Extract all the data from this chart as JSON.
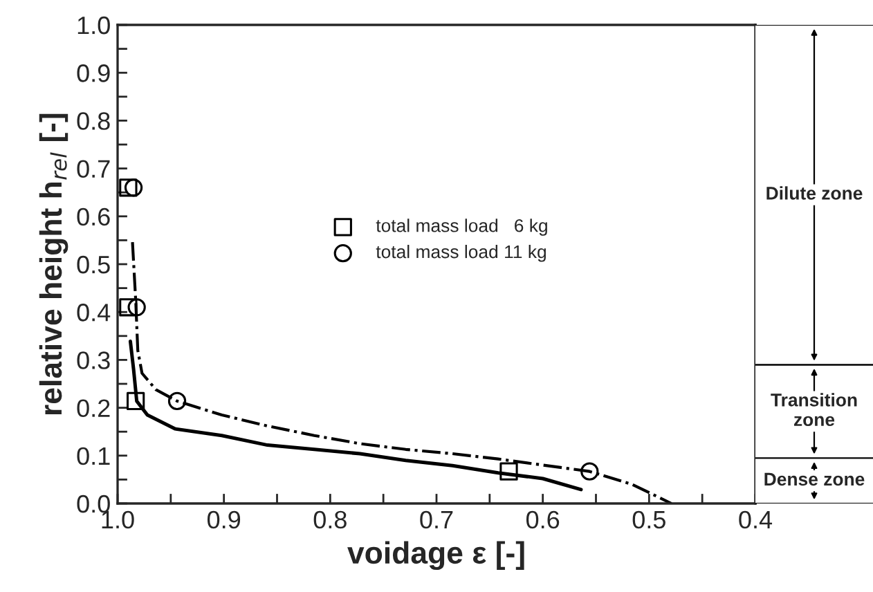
{
  "chart_data": [
    {
      "type": "line",
      "xlabel": "voidage ε [-]",
      "ylabel": "relative height h$_{rel}$ [-]",
      "xlim": [
        1.0,
        0.4
      ],
      "ylim": [
        0.0,
        1.0
      ],
      "xticks": [
        {
          "value": 1.0,
          "label": "1.0"
        },
        {
          "value": 0.95,
          "label": null
        },
        0.9,
        {
          "value": 0.85,
          "label": null
        },
        0.8,
        {
          "value": 0.75,
          "label": null
        },
        0.7,
        {
          "value": 0.65,
          "label": null
        },
        0.6,
        {
          "value": 0.55,
          "label": null
        },
        0.5,
        {
          "value": 0.45,
          "label": null
        },
        0.4
      ],
      "yticks": [
        {
          "value": 0.0,
          "label": "0.0"
        },
        {
          "value": 0.05,
          "label": null
        },
        0.1,
        {
          "value": 0.15,
          "label": null
        },
        0.2,
        {
          "value": 0.25,
          "label": null
        },
        0.3,
        {
          "value": 0.35,
          "label": null
        },
        0.4,
        {
          "value": 0.45,
          "label": null
        },
        0.5,
        {
          "value": 0.55,
          "label": null
        },
        0.6,
        {
          "value": 0.65,
          "label": null
        },
        0.7,
        {
          "value": 0.75,
          "label": null
        },
        0.8,
        {
          "value": 0.85,
          "label": null
        },
        0.9,
        {
          "value": 0.95,
          "label": null
        },
        {
          "value": 1.0,
          "label": "1.0"
        }
      ],
      "grid": false,
      "legend": "center",
      "series": [
        {
          "name": "total mass load   6 kg",
          "type": "scatter",
          "marker": "square",
          "color": "#000000",
          "x": [
            0.99,
            0.99,
            0.983,
            0.632
          ],
          "values": [
            0.66,
            0.41,
            0.214,
            0.067
          ]
        },
        {
          "name": "total mass load 11 kg",
          "type": "scatter",
          "marker": "circle",
          "color": "#000000",
          "x": [
            0.985,
            0.982,
            0.944,
            0.556
          ],
          "values": [
            0.66,
            0.41,
            0.214,
            0.067
          ]
        },
        {
          "line_style": "solid",
          "color": "#000000",
          "x": [
            0.988,
            0.985,
            0.982,
            0.972,
            0.946,
            0.902,
            0.859,
            0.815,
            0.772,
            0.729,
            0.685,
            0.642,
            0.6,
            0.564
          ],
          "values": [
            0.339,
            0.281,
            0.214,
            0.185,
            0.156,
            0.142,
            0.122,
            0.113,
            0.104,
            0.09,
            0.079,
            0.064,
            0.052,
            0.029
          ]
        },
        {
          "line_style": "dashdot",
          "color": "#000000",
          "x": [
            0.986,
            0.983,
            0.981,
            0.977,
            0.964,
            0.944,
            0.902,
            0.859,
            0.815,
            0.772,
            0.729,
            0.685,
            0.642,
            0.556,
            0.516,
            0.479
          ],
          "values": [
            0.546,
            0.426,
            0.32,
            0.272,
            0.238,
            0.214,
            0.185,
            0.162,
            0.142,
            0.125,
            0.113,
            0.104,
            0.093,
            0.067,
            0.04,
            0.0
          ]
        }
      ]
    },
    {
      "type": "bar",
      "stacked": true,
      "categories": [
        null
      ],
      "ylim": [
        0.0,
        1.0
      ],
      "tick_labels": false,
      "legend": "right",
      "series": [
        {
          "name": "Dense zone",
          "color": "#ffffff",
          "values": [
            0.095
          ]
        },
        {
          "name": "Transition\nzone",
          "color": "#ffffff",
          "values": [
            0.195
          ]
        },
        {
          "name": "Dilute zone",
          "color": "#ffffff",
          "values": [
            0.71
          ]
        }
      ]
    }
  ]
}
